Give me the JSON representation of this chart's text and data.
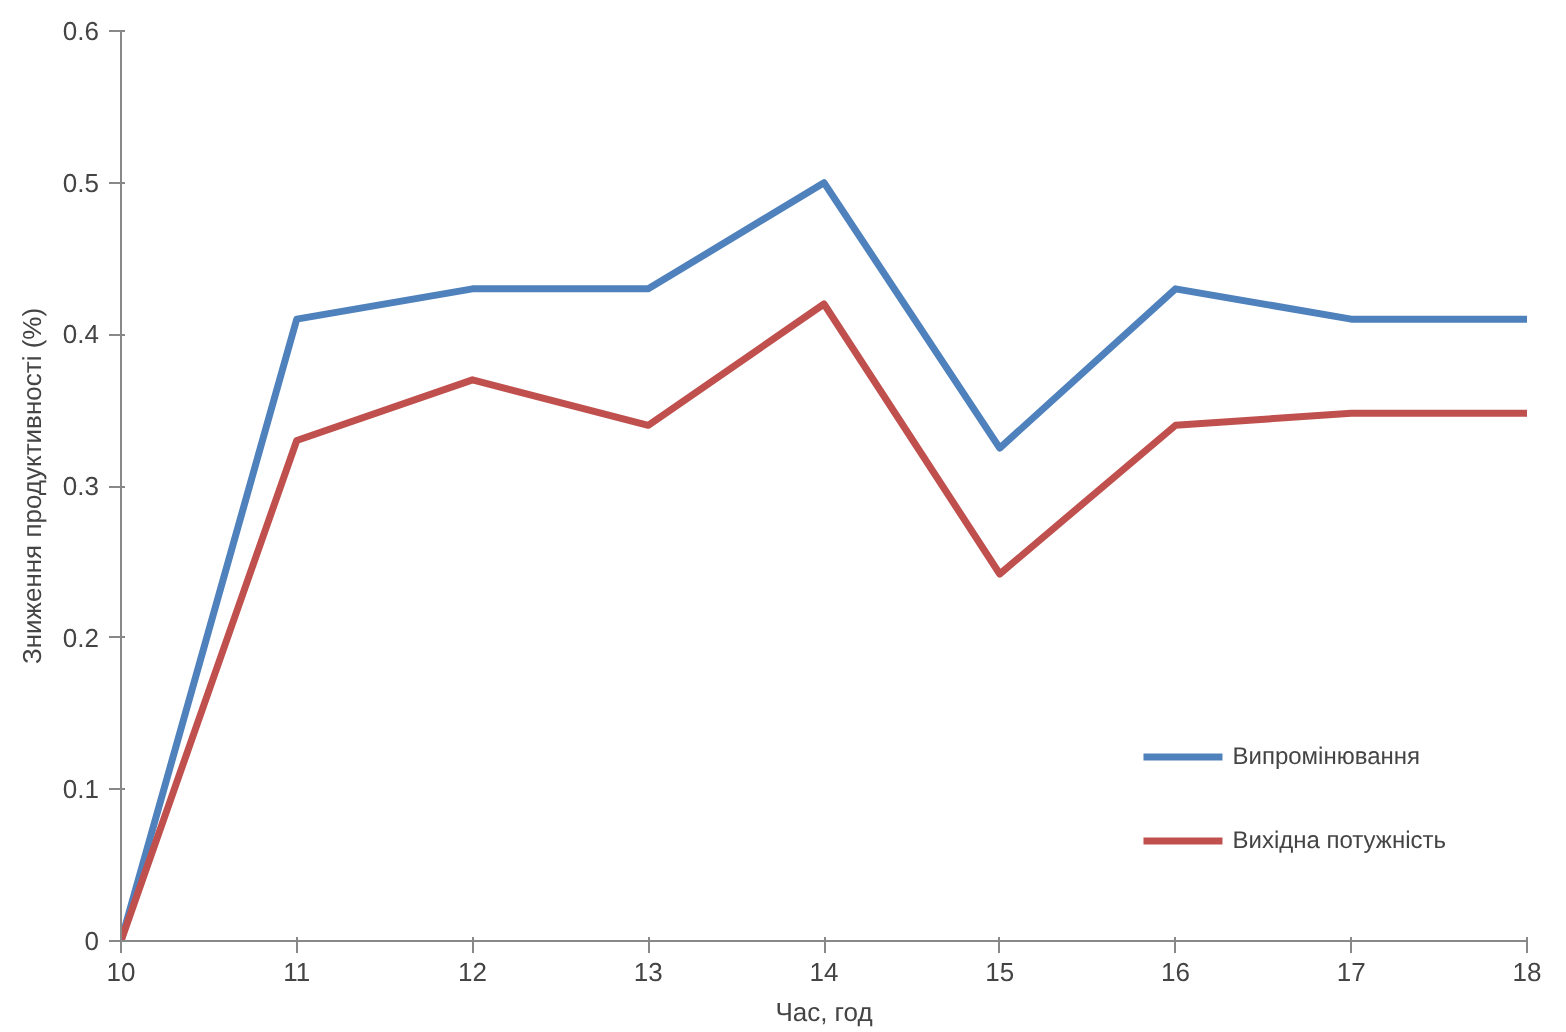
{
  "chart_data": {
    "type": "line",
    "xlabel": "Час, год",
    "ylabel": "Зниження продуктивності (%)",
    "x": [
      10,
      11,
      12,
      13,
      14,
      15,
      16,
      17,
      18
    ],
    "series": [
      {
        "name": "Випромінювання",
        "color": "#4f81bd",
        "values": [
          0,
          0.41,
          0.43,
          0.43,
          0.5,
          0.325,
          0.43,
          0.41,
          0.41
        ]
      },
      {
        "name": "Вихідна потужність",
        "color": "#c0504d",
        "values": [
          0,
          0.33,
          0.37,
          0.34,
          0.42,
          0.242,
          0.34,
          0.348,
          0.348
        ]
      }
    ],
    "xlim": [
      10,
      18
    ],
    "xticks": [
      10,
      11,
      12,
      13,
      14,
      15,
      16,
      17,
      18
    ],
    "ylim": [
      0,
      0.6
    ],
    "yticks": [
      0,
      0.1,
      0.2,
      0.3,
      0.4,
      0.5,
      0.6
    ],
    "grid": false,
    "legend": "bottom right",
    "marker": "none",
    "line_style": "solid"
  }
}
